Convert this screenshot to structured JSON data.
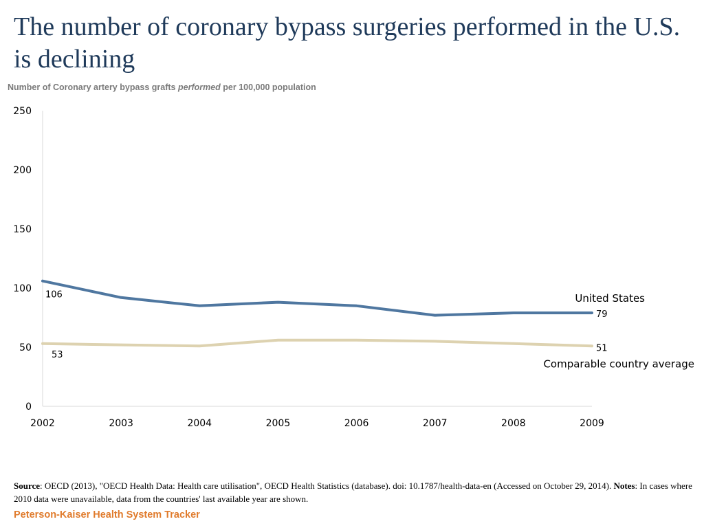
{
  "colors": {
    "title": "#1f3a5a",
    "us_line": "#4f77a0",
    "comparable_line": "#ddd2b0",
    "axis": "#d9d9d9",
    "brand": "#e07b2c"
  },
  "footer": {
    "source_label": "Source",
    "source_text": ": OECD (2013), \"OECD Health Data: Health care utilisation\", OECD Health Statistics (database).  doi: 10.1787/health-data-en (Accessed on October 29, 2014). ",
    "notes_label": "Notes",
    "notes_text": ": In cases where 2010 data were unavailable, data from the countries' last available year are shown.",
    "brand": "Peterson-Kaiser Health System Tracker"
  },
  "chart_data": {
    "type": "line",
    "title": "The number of coronary bypass surgeries performed in the U.S. is declining",
    "subtitle_before": "Number of Coronary artery bypass grafts ",
    "subtitle_emphasis": "performed",
    "subtitle_after": "  per 100,000 population",
    "xlabel": "",
    "ylabel": "",
    "x": [
      "2002",
      "2003",
      "2004",
      "2005",
      "2006",
      "2007",
      "2008",
      "2009"
    ],
    "ylim": [
      0,
      250
    ],
    "yticks": [
      "0",
      "50",
      "100",
      "150",
      "200",
      "250"
    ],
    "grid": false,
    "series": [
      {
        "name": "United States",
        "values": [
          106,
          92,
          85,
          88,
          85,
          77,
          79,
          79
        ],
        "start_label": "106",
        "end_label": "79"
      },
      {
        "name": "Comparable country average",
        "values": [
          53,
          52,
          51,
          56,
          56,
          55,
          53,
          51
        ],
        "start_label": "53",
        "end_label": "51"
      }
    ]
  }
}
